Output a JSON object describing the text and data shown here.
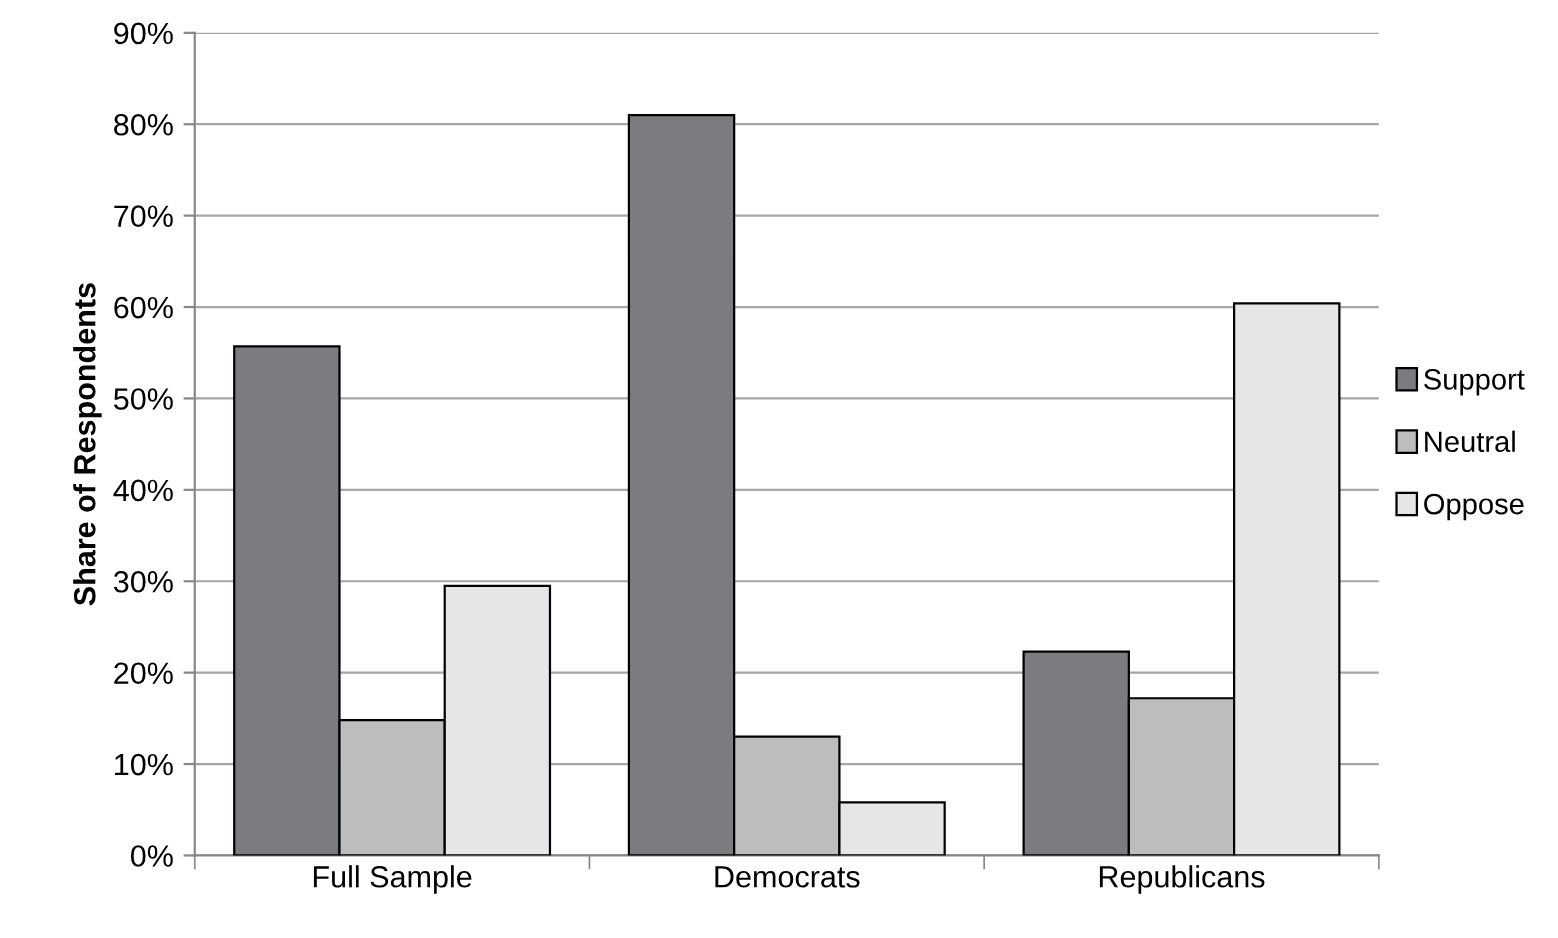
{
  "chart_data": {
    "type": "bar",
    "ylabel": "Share of Respondents",
    "categories": [
      "Full Sample",
      "Democrats",
      "Republicans"
    ],
    "series": [
      {
        "name": "Support",
        "color": "#7b7c80",
        "values": [
          55.7,
          81.0,
          22.3
        ]
      },
      {
        "name": "Neutral",
        "color": "#bdbdbd",
        "values": [
          14.8,
          13.0,
          17.2
        ]
      },
      {
        "name": "Oppose",
        "color": "#e6e6e8",
        "values": [
          29.5,
          5.8,
          60.4
        ]
      }
    ],
    "ylim": [
      0,
      90
    ],
    "yticks": [
      {
        "value": 0,
        "label": "0%"
      },
      {
        "value": 10,
        "label": "10%"
      },
      {
        "value": 20,
        "label": "20%"
      },
      {
        "value": 30,
        "label": "30%"
      },
      {
        "value": 40,
        "label": "40%"
      },
      {
        "value": 50,
        "label": "50%"
      },
      {
        "value": 60,
        "label": "60%"
      },
      {
        "value": 70,
        "label": "70%"
      },
      {
        "value": 80,
        "label": "80%"
      },
      {
        "value": 90,
        "label": "90%"
      }
    ],
    "grid": "y",
    "legend": "right"
  }
}
